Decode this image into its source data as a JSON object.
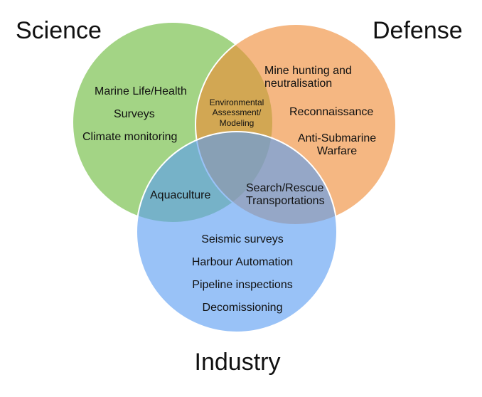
{
  "colors": {
    "science": "#6aba3a",
    "defense": "#ef8a35",
    "industry": "#5a9df2",
    "circle_opacity": "0.62",
    "stroke": "#ffffff"
  },
  "sets": {
    "science": {
      "title": "Science"
    },
    "defense": {
      "title": "Defense"
    },
    "industry": {
      "title": "Industry"
    }
  },
  "regions": {
    "science_only": [
      "Marine Life/Health",
      "Surveys",
      "Climate monitoring"
    ],
    "science_defense": [
      "Environmental",
      "Assessment/",
      "Modeling"
    ],
    "defense_only": {
      "mine": [
        "Mine hunting and",
        "neutralisation"
      ],
      "recon": "Reconnaissance",
      "asw": [
        "Anti-Submarine",
        "Warfare"
      ]
    },
    "science_industry": "Aquaculture",
    "defense_industry": [
      "Search/Rescue",
      "Transportations"
    ],
    "industry_only": [
      "Seismic surveys",
      "Harbour Automation",
      "Pipeline inspections",
      "Decomissioning"
    ]
  }
}
